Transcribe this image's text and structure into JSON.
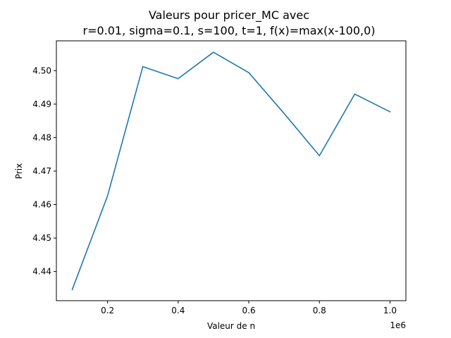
{
  "chart_data": {
    "type": "line",
    "title_line1": "Valeurs pour pricer_MC avec",
    "title_line2": "r=0.01, sigma=0.1, s=100, t=1, f(x)=max(x-100,0)",
    "xlabel": "Valeur de n",
    "ylabel": "Prix",
    "x_offset_label": "1e6",
    "xlim": [
      55000,
      1045000
    ],
    "ylim": [
      4.4313,
      4.5089
    ],
    "x_ticks": [
      0.2,
      0.4,
      0.6,
      0.8,
      1.0
    ],
    "x_tick_labels": [
      "0.2",
      "0.4",
      "0.6",
      "0.8",
      "1.0"
    ],
    "y_ticks": [
      4.44,
      4.45,
      4.46,
      4.47,
      4.48,
      4.49,
      4.5
    ],
    "y_tick_labels": [
      "4.44",
      "4.45",
      "4.46",
      "4.47",
      "4.48",
      "4.49",
      "4.50"
    ],
    "grid": false,
    "series": [
      {
        "color": "#1f77b4",
        "x": [
          100000,
          200000,
          300000,
          400000,
          500000,
          600000,
          700000,
          800000,
          900000,
          1000000
        ],
        "y": [
          4.4346,
          4.4626,
          4.5012,
          4.4976,
          4.5055,
          4.4994,
          4.4872,
          4.4746,
          4.493,
          4.4877
        ]
      }
    ]
  }
}
